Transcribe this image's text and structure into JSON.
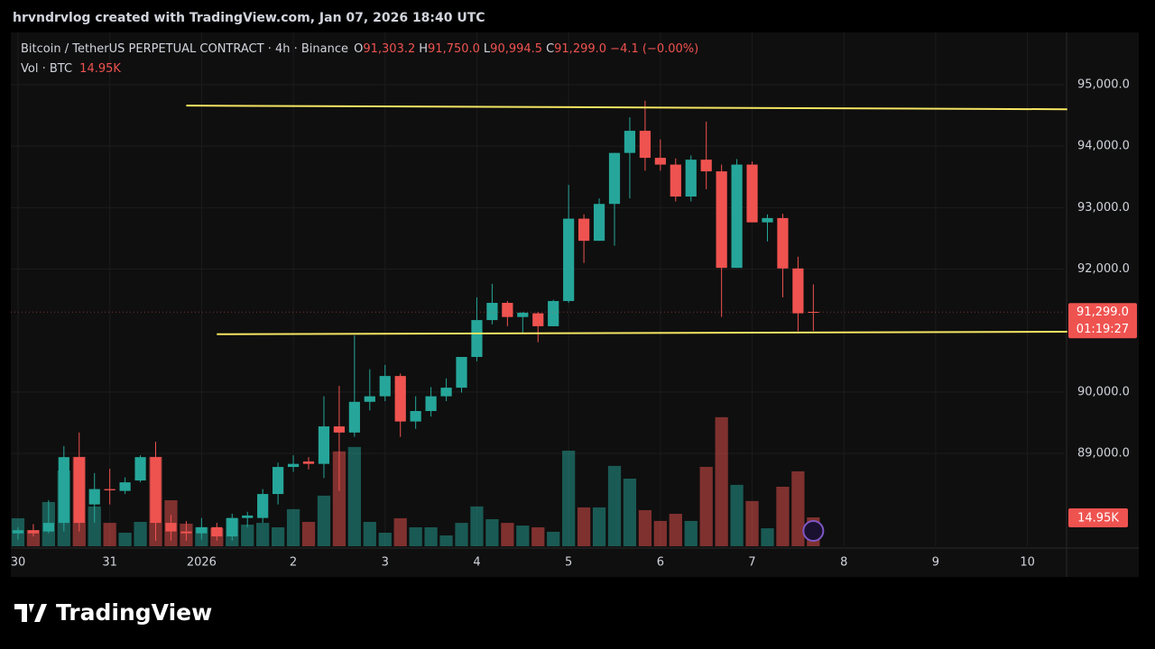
{
  "watermark": "hrvndrvlog created with TradingView.com, Jan 07, 2026 18:40 UTC",
  "brand": "TradingView",
  "chart_data": {
    "type": "candlestick",
    "title": "Bitcoin / TetherUS PERPETUAL CONTRACT · 4h · Binance",
    "ohlc_legend": [
      {
        "key": "O",
        "label": "91,303.2"
      },
      {
        "key": "H",
        "label": "91,750.0"
      },
      {
        "key": "L",
        "label": "90,994.5"
      },
      {
        "key": "C",
        "label": "91,299.0"
      }
    ],
    "change_label": "−4.1 (−0.00%)",
    "volume_title": "Vol · BTC",
    "volume_label": "14.95K",
    "last_price_label": "91,299.0",
    "countdown": "01:19:27",
    "up_color": "#26a69a",
    "down_color": "#ef5350",
    "open": [
      87700,
      87750,
      87730,
      87870,
      88940,
      88170,
      88420,
      88390,
      88560,
      88940,
      87870,
      87730,
      87700,
      87800,
      87650,
      87950,
      87950,
      88340,
      88780,
      88870,
      88830,
      89440,
      89340,
      89840,
      89930,
      90260,
      89520,
      89690,
      89930,
      90070,
      90570,
      91170,
      91450,
      91220,
      91280,
      91070,
      91480,
      92820,
      92460,
      93060,
      93890,
      94250,
      93810,
      93700,
      93180,
      93780,
      93590,
      92020,
      93700,
      92760,
      92830,
      92010,
      91303.2
    ],
    "high": [
      87800,
      87850,
      88240,
      89120,
      89340,
      88680,
      88750,
      88610,
      88970,
      89190,
      88000,
      87900,
      87950,
      87870,
      88020,
      88050,
      88420,
      88850,
      88970,
      88940,
      89930,
      90100,
      90920,
      90370,
      90440,
      90300,
      89930,
      90080,
      90220,
      90570,
      91540,
      91760,
      91480,
      91300,
      91300,
      91500,
      93370,
      92890,
      93150,
      93890,
      94470,
      94740,
      94110,
      93800,
      93850,
      94400,
      93700,
      93790,
      93750,
      92890,
      92900,
      92200,
      91750
    ],
    "low": [
      87600,
      87650,
      87700,
      87730,
      87730,
      87870,
      88170,
      88340,
      88530,
      87580,
      87580,
      87580,
      87600,
      87580,
      87580,
      87800,
      87870,
      88170,
      88700,
      88740,
      88600,
      88390,
      89270,
      89700,
      89850,
      89270,
      89400,
      89600,
      89850,
      89990,
      90500,
      91100,
      91070,
      90950,
      90810,
      91070,
      91450,
      92100,
      92460,
      92380,
      93150,
      93600,
      93600,
      93100,
      93100,
      93300,
      91220,
      92020,
      92760,
      92450,
      91540,
      90990,
      90994.5
    ],
    "close": [
      87750,
      87700,
      87870,
      88940,
      87870,
      88420,
      88400,
      88530,
      88940,
      87870,
      87730,
      87700,
      87800,
      87650,
      87950,
      87990,
      88340,
      88780,
      88830,
      88830,
      89440,
      89340,
      89840,
      89930,
      90260,
      89520,
      89690,
      89930,
      90070,
      90570,
      91170,
      91450,
      91220,
      91290,
      91070,
      91480,
      92820,
      92460,
      93060,
      93890,
      94250,
      93810,
      93700,
      93180,
      93780,
      93590,
      92020,
      93700,
      92760,
      92830,
      92010,
      91280,
      91299
    ],
    "volume": [
      14500,
      8400,
      22900,
      39200,
      46300,
      20600,
      12100,
      7000,
      12600,
      46300,
      23800,
      11700,
      9800,
      9300,
      14500,
      11200,
      12100,
      9800,
      19200,
      12600,
      26200,
      49100,
      51400,
      12600,
      7000,
      14500,
      9800,
      9800,
      5600,
      12100,
      20600,
      14000,
      12100,
      10700,
      9800,
      7500,
      49500,
      20100,
      20100,
      41600,
      35000,
      18700,
      13100,
      16800,
      13100,
      41100,
      66800,
      31800,
      23400,
      9300,
      30800,
      38800,
      14950
    ],
    "xlim": [
      -0.47,
      68.44
    ],
    "xticks": [
      {
        "value": 0,
        "label": "30"
      },
      {
        "value": 6,
        "label": "31"
      },
      {
        "value": 12,
        "label": "2026"
      },
      {
        "value": 18,
        "label": "2"
      },
      {
        "value": 24,
        "label": "3"
      },
      {
        "value": 30,
        "label": "4"
      },
      {
        "value": 36,
        "label": "5"
      },
      {
        "value": 42,
        "label": "6"
      },
      {
        "value": 48,
        "label": "7"
      },
      {
        "value": 54,
        "label": "8"
      },
      {
        "value": 60,
        "label": "9"
      },
      {
        "value": 66,
        "label": "10"
      }
    ],
    "ylim": [
      87490,
      95850
    ],
    "yticks": [
      {
        "value": 89000,
        "label": "89,000.0"
      },
      {
        "value": 90000,
        "label": "90,000.0"
      },
      {
        "value": 92000,
        "label": "92,000.0"
      },
      {
        "value": 93000,
        "label": "93,000.0"
      },
      {
        "value": 94000,
        "label": "94,000.0"
      },
      {
        "value": 95000,
        "label": "95,000.0"
      }
    ],
    "y2lim": [
      0,
      266000
    ],
    "annotations": [
      {
        "x": [
          11.0,
          68.6
        ],
        "y": [
          94660,
          94600
        ],
        "color": "#f5e663"
      },
      {
        "x": [
          13.0,
          68.6
        ],
        "y": [
          90940,
          90980
        ],
        "color": "#f5e663"
      }
    ]
  }
}
